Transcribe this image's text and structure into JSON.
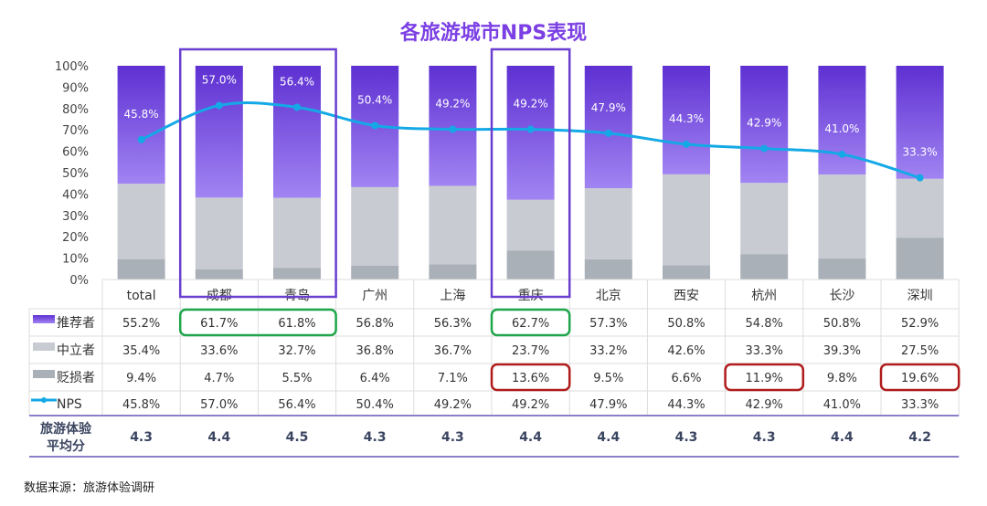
{
  "chart_data": {
    "type": "bar",
    "stacked": true,
    "title": "各旅游城市NPS表现",
    "categories": [
      "total",
      "成都",
      "青岛",
      "广州",
      "上海",
      "重庆",
      "北京",
      "西安",
      "杭州",
      "长沙",
      "深圳"
    ],
    "yticks": [
      "0%",
      "10%",
      "20%",
      "30%",
      "40%",
      "50%",
      "60%",
      "70%",
      "80%",
      "90%",
      "100%"
    ],
    "ylim": [
      0,
      100
    ],
    "series": [
      {
        "name": "推荐者",
        "color": "#7b4fe0",
        "values": [
          55.2,
          61.7,
          61.8,
          56.8,
          56.3,
          62.7,
          57.3,
          50.8,
          54.8,
          50.8,
          52.9
        ],
        "labels": [
          "55.2%",
          "61.7%",
          "61.8%",
          "56.8%",
          "56.3%",
          "62.7%",
          "57.3%",
          "50.8%",
          "54.8%",
          "50.8%",
          "52.9%"
        ]
      },
      {
        "name": "中立者",
        "color": "#c9cbd3",
        "values": [
          35.4,
          33.6,
          32.7,
          36.8,
          36.7,
          23.7,
          33.2,
          42.6,
          33.3,
          39.3,
          27.5
        ],
        "labels": [
          "35.4%",
          "33.6%",
          "32.7%",
          "36.8%",
          "36.7%",
          "23.7%",
          "33.2%",
          "42.6%",
          "33.3%",
          "39.3%",
          "27.5%"
        ]
      },
      {
        "name": "贬损者",
        "color": "#a9b0b8",
        "values": [
          9.4,
          4.7,
          5.5,
          6.4,
          7.1,
          13.6,
          9.5,
          6.6,
          11.9,
          9.8,
          19.6
        ],
        "labels": [
          "9.4%",
          "4.7%",
          "5.5%",
          "6.4%",
          "7.1%",
          "13.6%",
          "9.5%",
          "6.6%",
          "11.9%",
          "9.8%",
          "19.6%"
        ]
      },
      {
        "name": "NPS",
        "type": "line",
        "color": "#14a9e6",
        "values": [
          45.8,
          57.0,
          56.4,
          50.4,
          49.2,
          49.2,
          47.9,
          44.3,
          42.9,
          41.0,
          33.3
        ],
        "labels": [
          "45.8%",
          "57.0%",
          "56.4%",
          "50.4%",
          "49.2%",
          "49.2%",
          "47.9%",
          "44.3%",
          "42.9%",
          "41.0%",
          "33.3%"
        ]
      }
    ],
    "score_row": {
      "label_line1": "旅游体验",
      "label_line2": "平均分",
      "values": [
        "4.3",
        "4.4",
        "4.5",
        "4.3",
        "4.3",
        "4.4",
        "4.4",
        "4.3",
        "4.3",
        "4.4",
        "4.2"
      ]
    },
    "highlights": {
      "category_boxes": {
        "color": "#6a3fd0",
        "groups": [
          [
            "成都",
            "青岛"
          ],
          [
            "重庆"
          ]
        ]
      },
      "promoter_boxes": {
        "color": "#1fa64a",
        "groups": [
          [
            "成都",
            "青岛"
          ],
          [
            "重庆"
          ]
        ]
      },
      "detractor_boxes": {
        "color": "#b01b1b",
        "groups": [
          [
            "重庆"
          ],
          [
            "杭州"
          ],
          [
            "深圳"
          ]
        ]
      }
    }
  },
  "source": "数据来源：旅游体验调研"
}
